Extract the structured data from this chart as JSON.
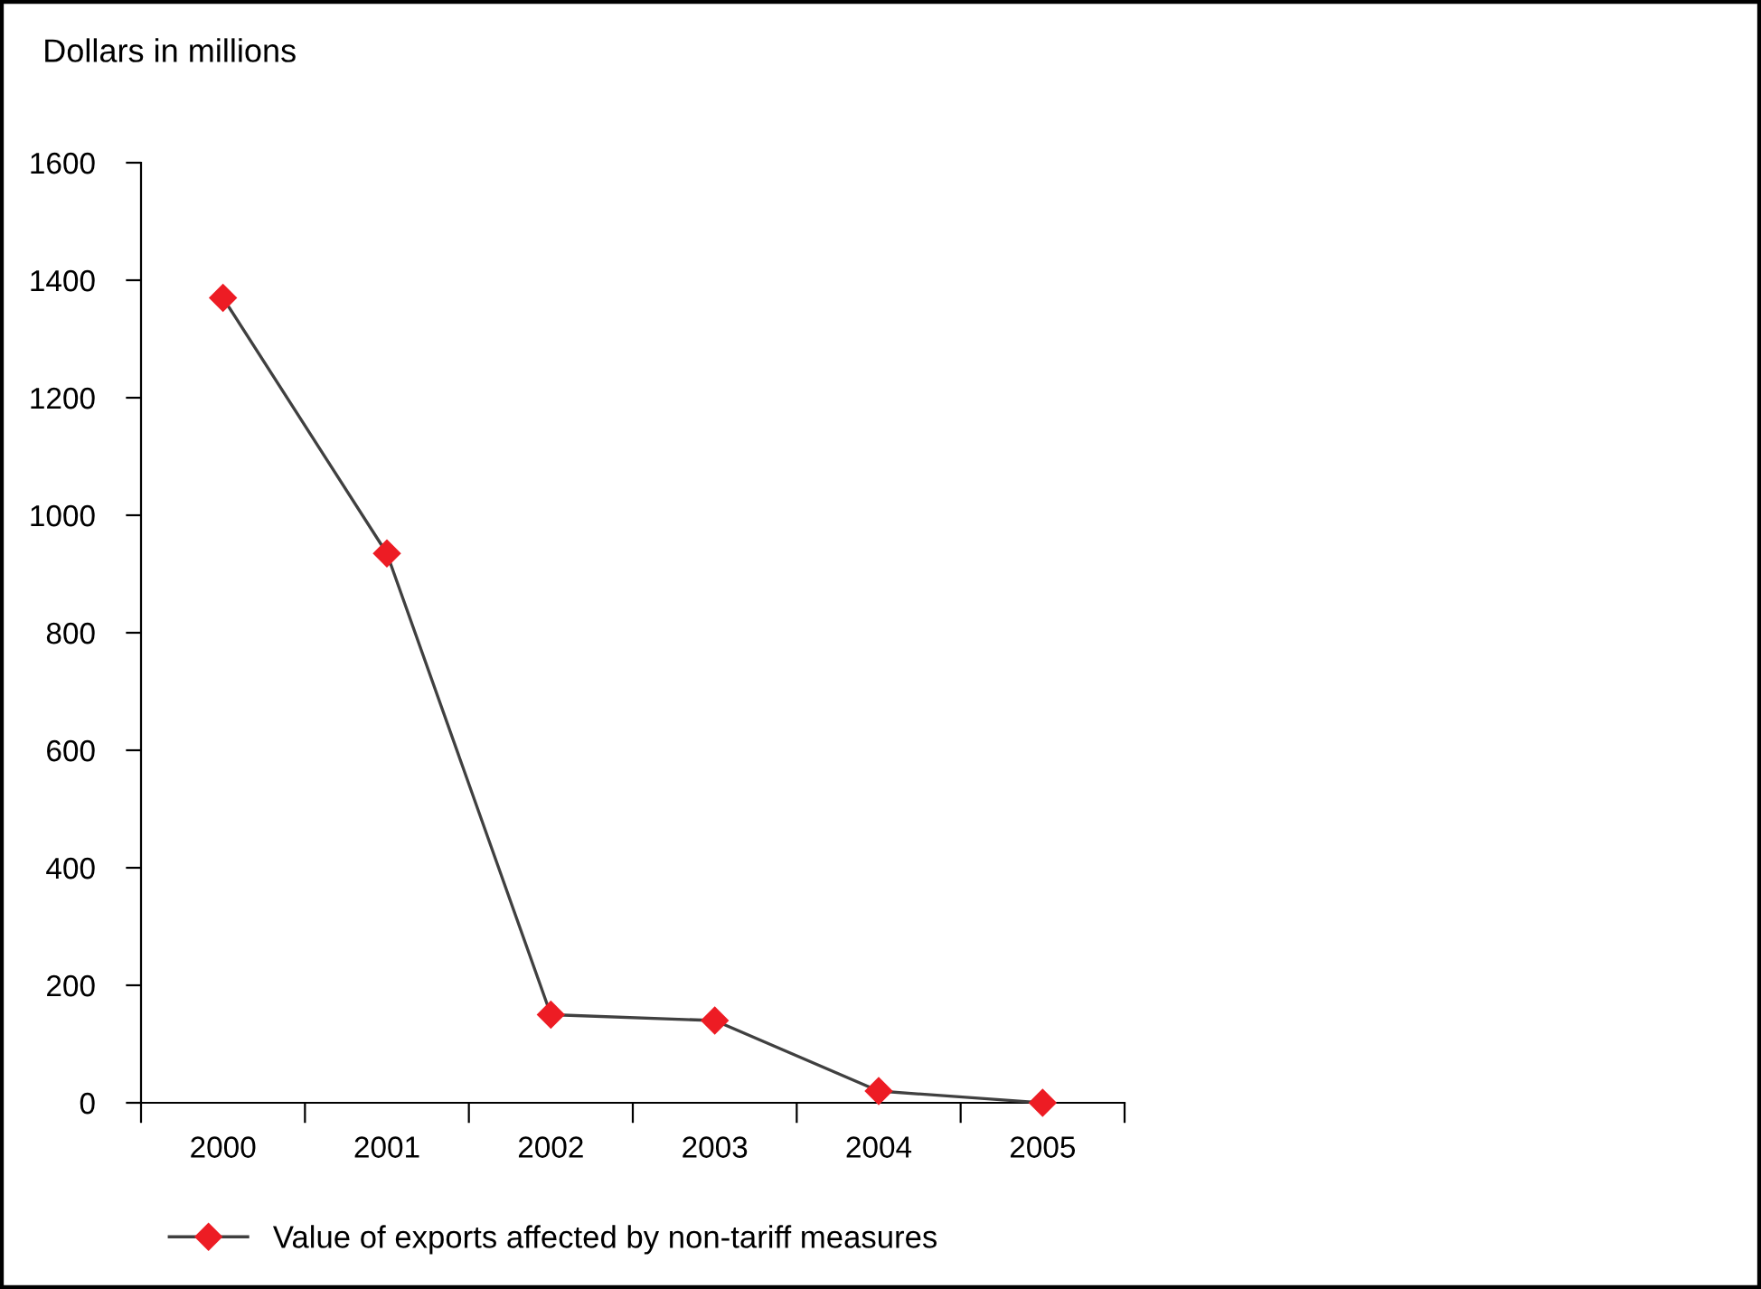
{
  "chart_data": {
    "type": "line",
    "ylabel": "Dollars in millions",
    "categories": [
      "2000",
      "2001",
      "2002",
      "2003",
      "2004",
      "2005"
    ],
    "series": [
      {
        "name": "Value of exports affected by non-tariff measures",
        "color": "#ed1c24",
        "values": [
          1370,
          935,
          150,
          140,
          20,
          0
        ]
      }
    ],
    "ylim": [
      0,
      1600
    ],
    "yticks": [
      0,
      200,
      400,
      600,
      800,
      1000,
      1200,
      1400,
      1600
    ],
    "grid": false,
    "legend": "bottom",
    "marker": "diamond",
    "line_style": "solid"
  }
}
